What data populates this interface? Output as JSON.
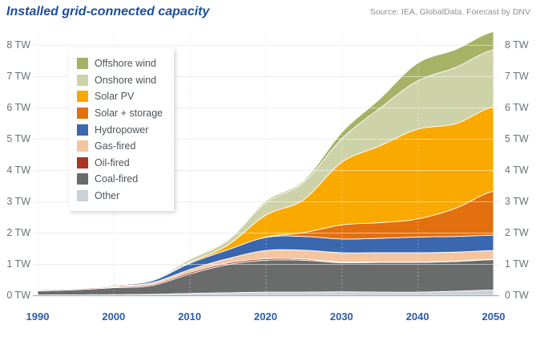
{
  "header": {
    "title": "Installed grid-connected capacity",
    "source": "Source: IEA, GlobalData. Forecast by DNV"
  },
  "colors": {
    "title_text": "#1d4e9e",
    "source_text": "#8b9094",
    "year_label": "#2b5cab",
    "tw_label": "#6d7379",
    "axis_line": "#a7acb1",
    "grid_line": "#dadde0",
    "grid_overlay": "rgba(255,255,255,0.5)",
    "dotted_line": "#c3c8cc"
  },
  "chart_data": {
    "type": "area",
    "stacked": true,
    "title": "Installed grid-connected capacity",
    "unit": "TW",
    "x": [
      1990,
      1995,
      2000,
      2005,
      2010,
      2015,
      2020,
      2025,
      2030,
      2035,
      2040,
      2045,
      2050
    ],
    "x_tick_labels": [
      "1990",
      "2000",
      "2010",
      "2020",
      "2030",
      "2040",
      "2050"
    ],
    "x_tick_years": [
      1990,
      2000,
      2010,
      2020,
      2030,
      2040,
      2050
    ],
    "y_tick_labels": [
      "0 TW",
      "1 TW",
      "2 TW",
      "3 TW",
      "4 TW",
      "5 TW",
      "6 TW",
      "7 TW",
      "8 TW"
    ],
    "y_tick_values": [
      0,
      1,
      2,
      3,
      4,
      5,
      6,
      7,
      8
    ],
    "ylim": [
      0,
      8.7
    ],
    "grid": true,
    "legend_position": "upper-left",
    "series": [
      {
        "name": "Other",
        "color": "#c9d2d9",
        "values": [
          0.01,
          0.015,
          0.02,
          0.03,
          0.06,
          0.08,
          0.1,
          0.1,
          0.11,
          0.1,
          0.1,
          0.13,
          0.17
        ]
      },
      {
        "name": "Coal-fired",
        "color": "#6a6b6b",
        "values": [
          0.13,
          0.16,
          0.22,
          0.28,
          0.62,
          0.9,
          1.02,
          1.02,
          0.93,
          0.95,
          0.95,
          0.95,
          0.97
        ]
      },
      {
        "name": "Oil-fired",
        "color": "#a93523",
        "values": [
          0.03,
          0.03,
          0.03,
          0.04,
          0.05,
          0.05,
          0.05,
          0.04,
          0.02,
          0.01,
          0.01,
          0.01,
          0.01
        ]
      },
      {
        "name": "Gas-fired",
        "color": "#f4c6a0",
        "values": [
          0.02,
          0.025,
          0.03,
          0.05,
          0.09,
          0.14,
          0.26,
          0.28,
          0.3,
          0.3,
          0.3,
          0.29,
          0.28
        ]
      },
      {
        "name": "Hydropower",
        "color": "#3a67ae",
        "values": [
          0.01,
          0.015,
          0.03,
          0.06,
          0.2,
          0.28,
          0.42,
          0.44,
          0.44,
          0.46,
          0.5,
          0.5,
          0.49
        ]
      },
      {
        "name": "Solar + storage",
        "color": "#e2700f",
        "values": [
          0,
          0,
          0,
          0,
          0,
          0,
          0.01,
          0.12,
          0.45,
          0.5,
          0.58,
          0.9,
          1.41
        ]
      },
      {
        "name": "Solar PV",
        "color": "#f9a900",
        "values": [
          0,
          0,
          0,
          0.005,
          0.03,
          0.15,
          0.7,
          1.05,
          2.0,
          2.45,
          2.87,
          2.7,
          2.7
        ]
      },
      {
        "name": "Onshore wind",
        "color": "#cdd2a8",
        "values": [
          0,
          0,
          0,
          0.01,
          0.1,
          0.15,
          0.4,
          0.55,
          0.75,
          1.2,
          1.54,
          1.8,
          1.82
        ]
      },
      {
        "name": "Offshore wind",
        "color": "#a6b266",
        "values": [
          0,
          0,
          0,
          0,
          0,
          0.01,
          0.05,
          0.05,
          0.2,
          0.3,
          0.57,
          0.57,
          0.58
        ]
      }
    ]
  }
}
